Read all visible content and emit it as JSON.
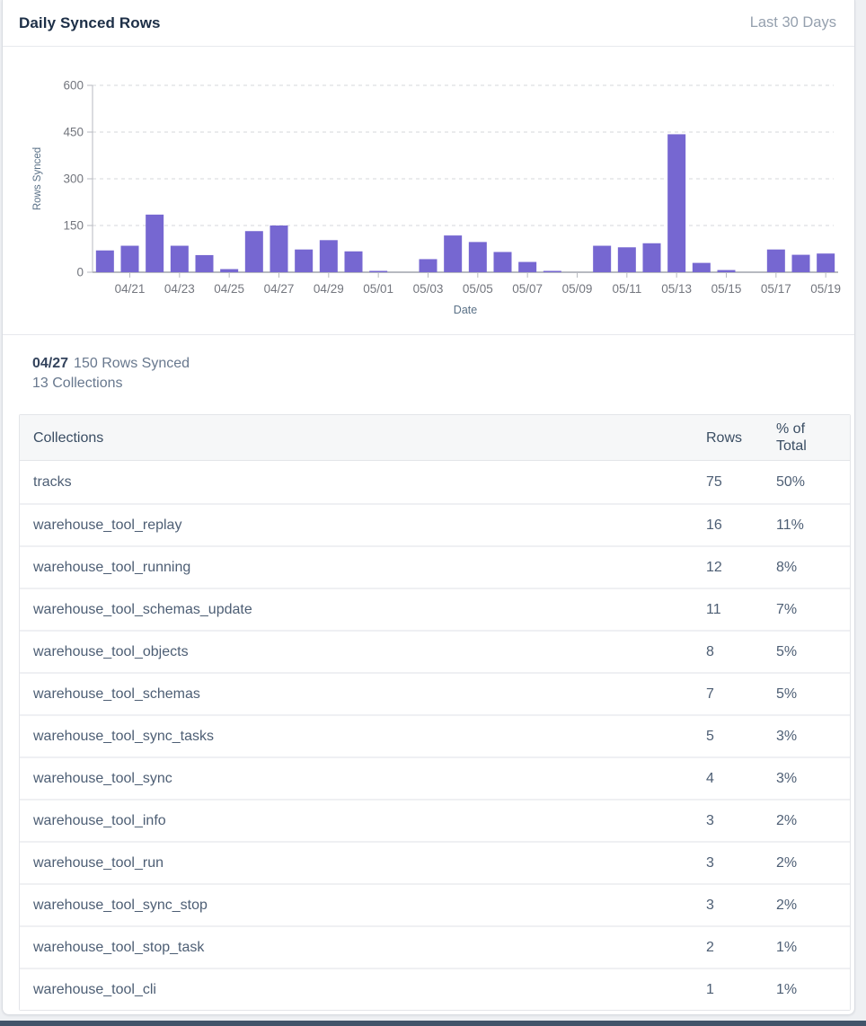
{
  "header": {
    "title": "Daily Synced Rows",
    "period": "Last 30 Days"
  },
  "chart_data": {
    "type": "bar",
    "title": "Daily Synced Rows",
    "xlabel": "Date",
    "ylabel": "Rows Synced",
    "ylim": [
      0,
      600
    ],
    "yticks": [
      0,
      150,
      300,
      450,
      600
    ],
    "grid": "horizontal-dashed",
    "legend": "none",
    "bar_color": "#7667d1",
    "x": [
      "04/20",
      "04/21",
      "04/22",
      "04/23",
      "04/24",
      "04/25",
      "04/26",
      "04/27",
      "04/28",
      "04/29",
      "04/30",
      "05/01",
      "05/02",
      "05/03",
      "05/04",
      "05/05",
      "05/06",
      "05/07",
      "05/08",
      "05/09",
      "05/10",
      "05/11",
      "05/12",
      "05/13",
      "05/14",
      "05/15",
      "05/16",
      "05/17",
      "05/18",
      "05/19"
    ],
    "values": [
      70,
      85,
      185,
      85,
      55,
      10,
      132,
      150,
      73,
      103,
      67,
      3,
      0,
      42,
      118,
      97,
      65,
      33,
      4,
      0,
      85,
      80,
      93,
      443,
      30,
      7,
      0,
      73,
      56,
      60
    ],
    "xtick_labels": [
      "04/21",
      "04/23",
      "04/25",
      "04/27",
      "04/29",
      "05/01",
      "05/03",
      "05/05",
      "05/07",
      "05/09",
      "05/11",
      "05/13",
      "05/15",
      "05/17",
      "05/19"
    ]
  },
  "selection": {
    "date": "04/27",
    "rows_text": "150 Rows Synced",
    "collections_text": "13 Collections"
  },
  "table": {
    "columns": {
      "name": "Collections",
      "rows": "Rows",
      "pct": "% of Total"
    },
    "rows": [
      {
        "name": "tracks",
        "rows": "75",
        "pct": "50%"
      },
      {
        "name": "warehouse_tool_replay",
        "rows": "16",
        "pct": "11%"
      },
      {
        "name": "warehouse_tool_running",
        "rows": "12",
        "pct": "8%"
      },
      {
        "name": "warehouse_tool_schemas_update",
        "rows": "11",
        "pct": "7%"
      },
      {
        "name": "warehouse_tool_objects",
        "rows": "8",
        "pct": "5%"
      },
      {
        "name": "warehouse_tool_schemas",
        "rows": "7",
        "pct": "5%"
      },
      {
        "name": "warehouse_tool_sync_tasks",
        "rows": "5",
        "pct": "3%"
      },
      {
        "name": "warehouse_tool_sync",
        "rows": "4",
        "pct": "3%"
      },
      {
        "name": "warehouse_tool_info",
        "rows": "3",
        "pct": "2%"
      },
      {
        "name": "warehouse_tool_run",
        "rows": "3",
        "pct": "2%"
      },
      {
        "name": "warehouse_tool_sync_stop",
        "rows": "3",
        "pct": "2%"
      },
      {
        "name": "warehouse_tool_stop_task",
        "rows": "2",
        "pct": "1%"
      },
      {
        "name": "warehouse_tool_cli",
        "rows": "1",
        "pct": "1%"
      }
    ]
  },
  "colors": {
    "accent": "#7667d1",
    "title_text": "#1d2f47",
    "muted_text": "#68788e",
    "axis_text": "#73767e",
    "axis_label_text": "#5a7187",
    "grid_line": "#d6d7db",
    "axis_line": "#b7bac0",
    "table_header_bg": "#f6f7f8",
    "bottom_strip": "#42546a"
  }
}
